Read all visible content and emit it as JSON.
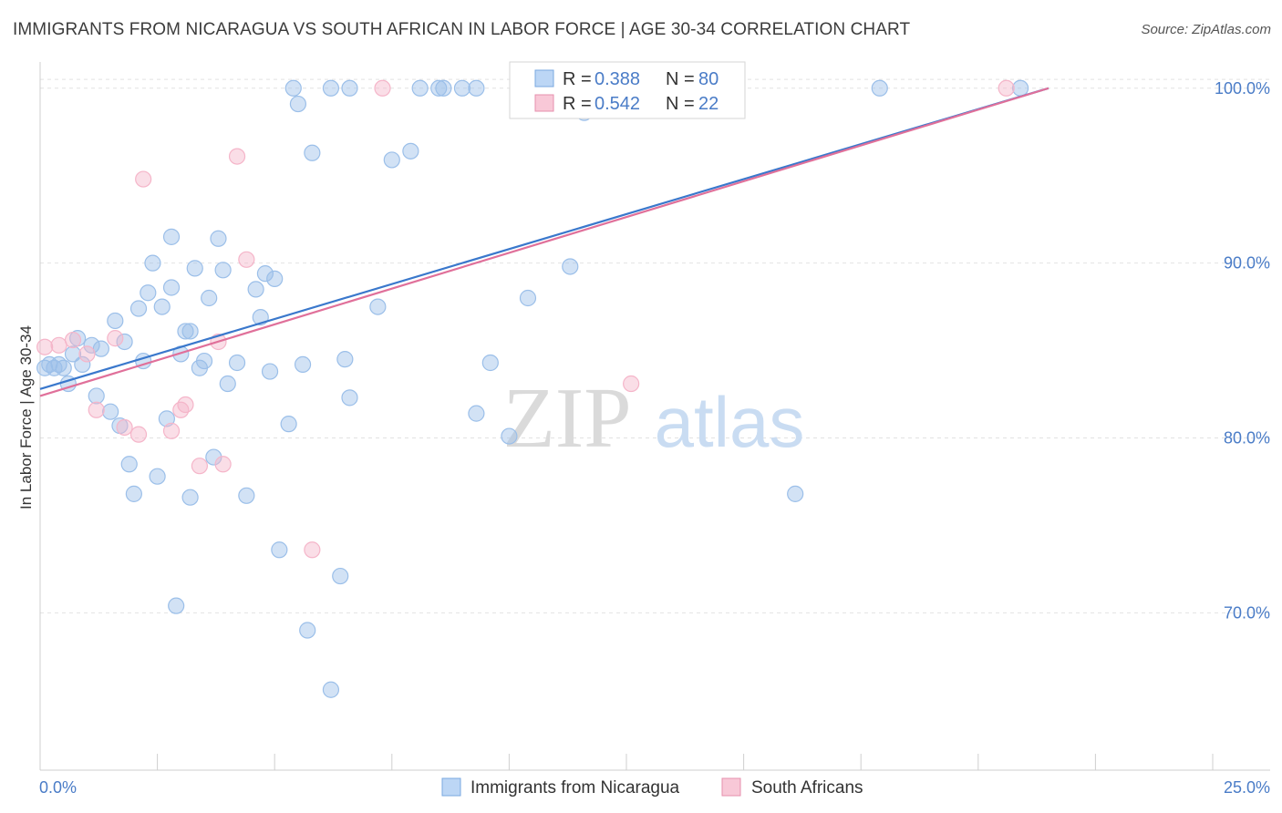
{
  "header": {
    "title": "IMMIGRANTS FROM NICARAGUA VS SOUTH AFRICAN IN LABOR FORCE | AGE 30-34 CORRELATION CHART",
    "source": "Source: ZipAtlas.com"
  },
  "watermark": {
    "zip": "ZIP",
    "atlas": "atlas"
  },
  "stats": [
    {
      "r_label": "R =",
      "r_value": "0.388",
      "n_label": "N =",
      "n_value": "80"
    },
    {
      "r_label": "R =",
      "r_value": "0.542",
      "n_label": "N =",
      "n_value": "22"
    }
  ],
  "chart_data": {
    "type": "scatter",
    "xlabel": "",
    "ylabel": "In Labor Force | Age 30-34",
    "xlim": [
      0,
      25
    ],
    "ylim": [
      61,
      101.5
    ],
    "x_tick_labels": [
      "0.0%",
      "25.0%"
    ],
    "y_ticks": [
      70,
      80,
      90,
      100
    ],
    "y_tick_labels": [
      "70.0%",
      "80.0%",
      "90.0%",
      "100.0%"
    ],
    "grid": true,
    "legend_position": "bottom",
    "series": [
      {
        "name": "Immigrants from Nicaragua",
        "color": "#9bbfe9",
        "line_color": "#3a78cc",
        "trend": [
          [
            0,
            82.8
          ],
          [
            21.5,
            100.0
          ]
        ],
        "points": [
          [
            0.1,
            84.0
          ],
          [
            0.2,
            84.2
          ],
          [
            0.3,
            84.0
          ],
          [
            0.4,
            84.2
          ],
          [
            0.5,
            84.0
          ],
          [
            0.6,
            83.1
          ],
          [
            0.7,
            84.8
          ],
          [
            0.8,
            85.7
          ],
          [
            0.9,
            84.2
          ],
          [
            1.1,
            85.3
          ],
          [
            1.2,
            82.4
          ],
          [
            1.3,
            85.1
          ],
          [
            1.5,
            81.5
          ],
          [
            1.6,
            86.7
          ],
          [
            1.7,
            80.7
          ],
          [
            1.8,
            85.5
          ],
          [
            1.9,
            78.5
          ],
          [
            2.0,
            76.8
          ],
          [
            2.1,
            87.4
          ],
          [
            2.2,
            84.4
          ],
          [
            2.3,
            88.3
          ],
          [
            2.4,
            90.0
          ],
          [
            2.5,
            77.8
          ],
          [
            2.6,
            87.5
          ],
          [
            2.7,
            81.1
          ],
          [
            2.8,
            88.6
          ],
          [
            2.8,
            91.5
          ],
          [
            2.9,
            70.4
          ],
          [
            3.0,
            84.8
          ],
          [
            3.1,
            86.1
          ],
          [
            3.2,
            76.6
          ],
          [
            3.2,
            86.1
          ],
          [
            3.3,
            89.7
          ],
          [
            3.4,
            84.0
          ],
          [
            3.5,
            84.4
          ],
          [
            3.6,
            88.0
          ],
          [
            3.7,
            78.9
          ],
          [
            3.8,
            91.4
          ],
          [
            3.9,
            89.6
          ],
          [
            4.0,
            83.1
          ],
          [
            4.2,
            84.3
          ],
          [
            4.4,
            76.7
          ],
          [
            4.6,
            88.5
          ],
          [
            4.7,
            86.9
          ],
          [
            4.8,
            89.4
          ],
          [
            4.9,
            83.8
          ],
          [
            5.0,
            89.1
          ],
          [
            5.1,
            73.6
          ],
          [
            5.3,
            80.8
          ],
          [
            5.4,
            100.0
          ],
          [
            5.5,
            99.1
          ],
          [
            5.6,
            84.2
          ],
          [
            5.7,
            69.0
          ],
          [
            5.8,
            96.3
          ],
          [
            6.2,
            65.6
          ],
          [
            6.2,
            100.0
          ],
          [
            6.4,
            72.1
          ],
          [
            6.5,
            84.5
          ],
          [
            6.6,
            82.3
          ],
          [
            6.6,
            100.0
          ],
          [
            7.2,
            87.5
          ],
          [
            7.5,
            95.9
          ],
          [
            7.9,
            96.4
          ],
          [
            8.1,
            100.0
          ],
          [
            8.5,
            100.0
          ],
          [
            8.6,
            100.0
          ],
          [
            9.0,
            100.0
          ],
          [
            9.3,
            100.0
          ],
          [
            9.3,
            81.4
          ],
          [
            9.6,
            84.3
          ],
          [
            10.0,
            80.1
          ],
          [
            10.4,
            88.0
          ],
          [
            11.1,
            100.0
          ],
          [
            11.3,
            89.8
          ],
          [
            11.6,
            98.6
          ],
          [
            12.1,
            100.0
          ],
          [
            14.5,
            100.0
          ],
          [
            16.1,
            76.8
          ],
          [
            17.9,
            100.0
          ],
          [
            20.9,
            100.0
          ]
        ]
      },
      {
        "name": "South Africans",
        "color": "#f5b5c9",
        "line_color": "#e0709a",
        "trend": [
          [
            0,
            82.4
          ],
          [
            21.5,
            100.0
          ]
        ],
        "points": [
          [
            0.1,
            85.2
          ],
          [
            0.4,
            85.3
          ],
          [
            0.7,
            85.6
          ],
          [
            1.0,
            84.8
          ],
          [
            1.2,
            81.6
          ],
          [
            1.6,
            85.7
          ],
          [
            1.8,
            80.6
          ],
          [
            2.1,
            80.2
          ],
          [
            2.2,
            94.8
          ],
          [
            2.8,
            80.4
          ],
          [
            3.0,
            81.6
          ],
          [
            3.1,
            81.9
          ],
          [
            3.4,
            78.4
          ],
          [
            3.8,
            85.5
          ],
          [
            3.9,
            78.5
          ],
          [
            4.2,
            96.1
          ],
          [
            4.4,
            90.2
          ],
          [
            5.8,
            73.6
          ],
          [
            7.3,
            100.0
          ],
          [
            12.0,
            100.0
          ],
          [
            12.6,
            83.1
          ],
          [
            20.6,
            100.0
          ]
        ]
      }
    ]
  }
}
